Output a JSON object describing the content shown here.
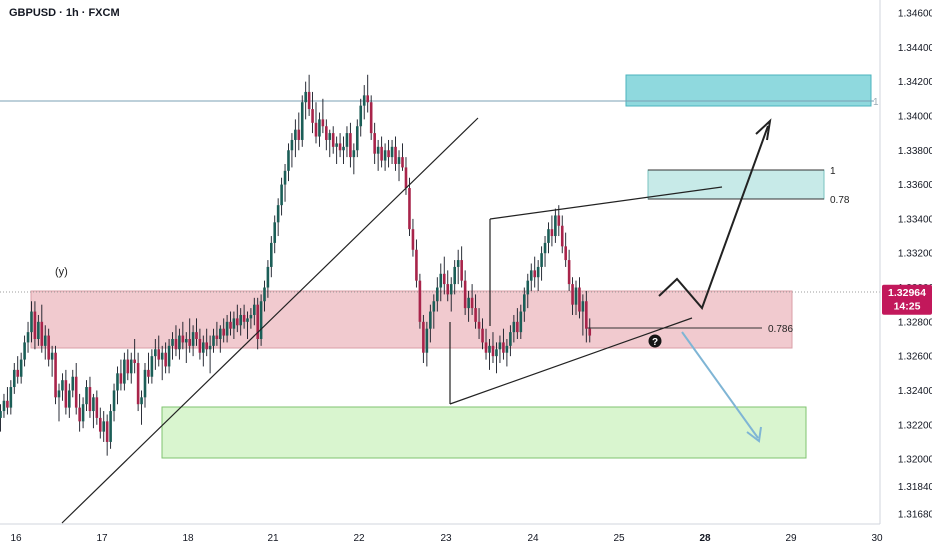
{
  "header": {
    "title": "GBPUSD · 1h · FXCM"
  },
  "chart_data": {
    "type": "candlestick",
    "symbol": "GBPUSD",
    "timeframe": "1h",
    "source": "FXCM",
    "ylim": [
      1.3158,
      1.3466
    ],
    "y_ticks": [
      "1.34600",
      "1.34400",
      "1.34200",
      "1.34000",
      "1.33800",
      "1.33600",
      "1.33400",
      "1.33200",
      "1.33000",
      "1.32800",
      "1.32600",
      "1.32400",
      "1.32200",
      "1.32000",
      "1.31840",
      "1.31680"
    ],
    "x_ticks": [
      {
        "day": 0,
        "label": "16"
      },
      {
        "day": 1,
        "label": "17"
      },
      {
        "day": 2,
        "label": "18"
      },
      {
        "day": 3,
        "label": "21"
      },
      {
        "day": 4,
        "label": "22"
      },
      {
        "day": 5,
        "label": "23"
      },
      {
        "day": 6,
        "label": "24"
      },
      {
        "day": 7,
        "label": "25"
      },
      {
        "day": 8,
        "label": "28",
        "bold": true
      },
      {
        "day": 9,
        "label": "29"
      },
      {
        "day": 10,
        "label": "30"
      }
    ],
    "x_range_days": [
      -0.18,
      10.05
    ],
    "last_price": {
      "value": 1.32964,
      "label": "1.32964",
      "countdown": "14:25"
    },
    "colors": {
      "up": "#1b5e57",
      "down": "#a8244a",
      "wick": "#131722",
      "price_label": "#c2185b"
    },
    "candles": [
      [
        -0.18,
        1.3224,
        1.3232,
        1.3216,
        1.3228
      ],
      [
        -0.14,
        1.3228,
        1.3238,
        1.3224,
        1.3234
      ],
      [
        -0.1,
        1.3234,
        1.3242,
        1.3226,
        1.323
      ],
      [
        -0.06,
        1.323,
        1.3246,
        1.3226,
        1.3242
      ],
      [
        -0.02,
        1.3242,
        1.3256,
        1.3238,
        1.3252
      ],
      [
        0.02,
        1.3252,
        1.326,
        1.3244,
        1.3248
      ],
      [
        0.06,
        1.3248,
        1.3262,
        1.3244,
        1.3258
      ],
      [
        0.1,
        1.3258,
        1.3272,
        1.3254,
        1.3268
      ],
      [
        0.14,
        1.3268,
        1.328,
        1.3262,
        1.3274
      ],
      [
        0.18,
        1.3274,
        1.3292,
        1.3268,
        1.3286
      ],
      [
        0.22,
        1.3286,
        1.3292,
        1.3264,
        1.327
      ],
      [
        0.26,
        1.327,
        1.3284,
        1.3266,
        1.328
      ],
      [
        0.3,
        1.328,
        1.329,
        1.3262,
        1.3266
      ],
      [
        0.34,
        1.3266,
        1.3278,
        1.3258,
        1.3272
      ],
      [
        0.38,
        1.3272,
        1.3276,
        1.3254,
        1.3258
      ],
      [
        0.42,
        1.3258,
        1.3266,
        1.3248,
        1.3262
      ],
      [
        0.46,
        1.3262,
        1.3266,
        1.3232,
        1.3236
      ],
      [
        0.5,
        1.3236,
        1.3244,
        1.3222,
        1.324
      ],
      [
        0.54,
        1.324,
        1.325,
        1.3234,
        1.3246
      ],
      [
        0.58,
        1.3246,
        1.3252,
        1.3226,
        1.323
      ],
      [
        0.62,
        1.323,
        1.3244,
        1.3224,
        1.324
      ],
      [
        0.66,
        1.324,
        1.3252,
        1.3236,
        1.3248
      ],
      [
        0.7,
        1.3248,
        1.3256,
        1.3226,
        1.323
      ],
      [
        0.74,
        1.323,
        1.3238,
        1.3216,
        1.3222
      ],
      [
        0.78,
        1.3222,
        1.3236,
        1.3218,
        1.3232
      ],
      [
        0.82,
        1.3232,
        1.3246,
        1.3228,
        1.3242
      ],
      [
        0.86,
        1.3242,
        1.3248,
        1.3224,
        1.3228
      ],
      [
        0.9,
        1.3228,
        1.3238,
        1.3218,
        1.3236
      ],
      [
        0.94,
        1.3236,
        1.324,
        1.322,
        1.3224
      ],
      [
        0.98,
        1.3224,
        1.323,
        1.3212,
        1.3216
      ],
      [
        1.02,
        1.3216,
        1.3228,
        1.321,
        1.3222
      ],
      [
        1.06,
        1.3222,
        1.3226,
        1.3202,
        1.321
      ],
      [
        1.1,
        1.321,
        1.3232,
        1.3206,
        1.3228
      ],
      [
        1.14,
        1.3228,
        1.3244,
        1.3222,
        1.324
      ],
      [
        1.18,
        1.324,
        1.3254,
        1.3232,
        1.325
      ],
      [
        1.22,
        1.325,
        1.3258,
        1.324,
        1.3244
      ],
      [
        1.26,
        1.3244,
        1.3262,
        1.324,
        1.3258
      ],
      [
        1.3,
        1.3258,
        1.3264,
        1.3246,
        1.325
      ],
      [
        1.34,
        1.325,
        1.3262,
        1.3244,
        1.3258
      ],
      [
        1.38,
        1.3258,
        1.327,
        1.325,
        1.3256
      ],
      [
        1.42,
        1.3256,
        1.3262,
        1.3228,
        1.3232
      ],
      [
        1.46,
        1.3232,
        1.324,
        1.322,
        1.3236
      ],
      [
        1.5,
        1.3236,
        1.3256,
        1.323,
        1.3252
      ],
      [
        1.54,
        1.3252,
        1.3262,
        1.3244,
        1.3248
      ],
      [
        1.58,
        1.3248,
        1.3264,
        1.3244,
        1.326
      ],
      [
        1.62,
        1.326,
        1.327,
        1.3252,
        1.3264
      ],
      [
        1.66,
        1.3264,
        1.3272,
        1.3254,
        1.3258
      ],
      [
        1.7,
        1.3258,
        1.3266,
        1.3246,
        1.3262
      ],
      [
        1.74,
        1.3262,
        1.3268,
        1.325,
        1.3254
      ],
      [
        1.78,
        1.3254,
        1.327,
        1.325,
        1.3266
      ],
      [
        1.82,
        1.3266,
        1.3274,
        1.3258,
        1.327
      ],
      [
        1.86,
        1.327,
        1.3278,
        1.326,
        1.3264
      ],
      [
        1.9,
        1.3264,
        1.3276,
        1.3258,
        1.3272
      ],
      [
        1.94,
        1.3272,
        1.328,
        1.3264,
        1.3268
      ],
      [
        1.98,
        1.3268,
        1.3274,
        1.3256,
        1.327
      ],
      [
        2.02,
        1.327,
        1.3282,
        1.3262,
        1.3266
      ],
      [
        2.06,
        1.3266,
        1.3278,
        1.326,
        1.3274
      ],
      [
        2.1,
        1.3274,
        1.3282,
        1.3266,
        1.327
      ],
      [
        2.14,
        1.327,
        1.3276,
        1.3258,
        1.3262
      ],
      [
        2.18,
        1.3262,
        1.3272,
        1.3254,
        1.3268
      ],
      [
        2.22,
        1.3268,
        1.3276,
        1.326,
        1.3264
      ],
      [
        2.26,
        1.3264,
        1.3272,
        1.325,
        1.3266
      ],
      [
        2.3,
        1.3266,
        1.3276,
        1.3262,
        1.3272
      ],
      [
        2.34,
        1.3272,
        1.328,
        1.3266,
        1.327
      ],
      [
        2.38,
        1.327,
        1.3278,
        1.3262,
        1.3276
      ],
      [
        2.42,
        1.3276,
        1.3282,
        1.3268,
        1.3272
      ],
      [
        2.46,
        1.3272,
        1.3284,
        1.3268,
        1.328
      ],
      [
        2.5,
        1.328,
        1.3286,
        1.3272,
        1.3276
      ],
      [
        2.54,
        1.3276,
        1.3286,
        1.327,
        1.3282
      ],
      [
        2.58,
        1.3282,
        1.329,
        1.3274,
        1.3278
      ],
      [
        2.62,
        1.3278,
        1.3288,
        1.3272,
        1.3284
      ],
      [
        2.66,
        1.3284,
        1.329,
        1.3276,
        1.328
      ],
      [
        2.7,
        1.328,
        1.3286,
        1.327,
        1.3282
      ],
      [
        2.74,
        1.3282,
        1.3288,
        1.3276,
        1.3284
      ],
      [
        2.78,
        1.3284,
        1.3294,
        1.3278,
        1.329
      ],
      [
        2.82,
        1.329,
        1.3294,
        1.3264,
        1.327
      ],
      [
        2.86,
        1.327,
        1.3296,
        1.3266,
        1.3292
      ],
      [
        2.9,
        1.3292,
        1.3304,
        1.3286,
        1.33
      ],
      [
        2.94,
        1.33,
        1.3316,
        1.3294,
        1.3312
      ],
      [
        2.98,
        1.3312,
        1.333,
        1.3306,
        1.3326
      ],
      [
        3.02,
        1.3326,
        1.3342,
        1.332,
        1.3338
      ],
      [
        3.06,
        1.3338,
        1.3352,
        1.333,
        1.3348
      ],
      [
        3.1,
        1.3348,
        1.3364,
        1.3342,
        1.336
      ],
      [
        3.14,
        1.336,
        1.3372,
        1.335,
        1.3368
      ],
      [
        3.18,
        1.3368,
        1.3384,
        1.3362,
        1.338
      ],
      [
        3.22,
        1.338,
        1.339,
        1.337,
        1.3386
      ],
      [
        3.26,
        1.3386,
        1.3398,
        1.3376,
        1.3392
      ],
      [
        3.3,
        1.3392,
        1.3402,
        1.338,
        1.3386
      ],
      [
        3.34,
        1.3386,
        1.3412,
        1.3382,
        1.3408
      ],
      [
        3.38,
        1.3408,
        1.342,
        1.3398,
        1.3414
      ],
      [
        3.42,
        1.3414,
        1.3424,
        1.34,
        1.3404
      ],
      [
        3.46,
        1.3404,
        1.3414,
        1.339,
        1.3396
      ],
      [
        3.5,
        1.3396,
        1.3408,
        1.3384,
        1.3388
      ],
      [
        3.54,
        1.3388,
        1.3402,
        1.3382,
        1.3398
      ],
      [
        3.58,
        1.3398,
        1.341,
        1.339,
        1.3394
      ],
      [
        3.62,
        1.3394,
        1.3398,
        1.338,
        1.3386
      ],
      [
        3.66,
        1.3386,
        1.3392,
        1.3376,
        1.339
      ],
      [
        3.7,
        1.339,
        1.3394,
        1.3378,
        1.3382
      ],
      [
        3.74,
        1.3382,
        1.3388,
        1.3372,
        1.3384
      ],
      [
        3.78,
        1.3384,
        1.339,
        1.3376,
        1.338
      ],
      [
        3.82,
        1.338,
        1.3388,
        1.3372,
        1.3382
      ],
      [
        3.86,
        1.3382,
        1.3394,
        1.3376,
        1.339
      ],
      [
        3.9,
        1.339,
        1.3396,
        1.337,
        1.3376
      ],
      [
        3.94,
        1.3376,
        1.3384,
        1.3366,
        1.338
      ],
      [
        3.98,
        1.338,
        1.3398,
        1.3376,
        1.3394
      ],
      [
        4.02,
        1.3394,
        1.341,
        1.3388,
        1.3406
      ],
      [
        4.06,
        1.3406,
        1.3418,
        1.3398,
        1.3412
      ],
      [
        4.1,
        1.3412,
        1.3424,
        1.3402,
        1.3408
      ],
      [
        4.14,
        1.3408,
        1.3412,
        1.3386,
        1.339
      ],
      [
        4.18,
        1.339,
        1.3396,
        1.3372,
        1.3378
      ],
      [
        4.22,
        1.3378,
        1.3386,
        1.3368,
        1.3382
      ],
      [
        4.26,
        1.3382,
        1.3388,
        1.337,
        1.3374
      ],
      [
        4.3,
        1.3374,
        1.3384,
        1.3368,
        1.338
      ],
      [
        4.34,
        1.338,
        1.3386,
        1.337,
        1.3376
      ],
      [
        4.38,
        1.3376,
        1.3386,
        1.3372,
        1.3382
      ],
      [
        4.42,
        1.3382,
        1.3388,
        1.3368,
        1.3372
      ],
      [
        4.46,
        1.3372,
        1.338,
        1.3362,
        1.3376
      ],
      [
        4.5,
        1.3376,
        1.3384,
        1.3368,
        1.337
      ],
      [
        4.54,
        1.337,
        1.3376,
        1.3354,
        1.3358
      ],
      [
        4.58,
        1.3358,
        1.3364,
        1.333,
        1.3334
      ],
      [
        4.62,
        1.3334,
        1.334,
        1.3318,
        1.3322
      ],
      [
        4.66,
        1.3322,
        1.3328,
        1.33,
        1.3304
      ],
      [
        4.7,
        1.3304,
        1.3308,
        1.3276,
        1.328
      ],
      [
        4.74,
        1.328,
        1.3284,
        1.3256,
        1.3262
      ],
      [
        4.78,
        1.3262,
        1.328,
        1.3254,
        1.3276
      ],
      [
        4.82,
        1.3276,
        1.329,
        1.3268,
        1.3286
      ],
      [
        4.86,
        1.3286,
        1.3296,
        1.3276,
        1.3292
      ],
      [
        4.9,
        1.3292,
        1.3306,
        1.3286,
        1.33
      ],
      [
        4.94,
        1.33,
        1.3314,
        1.3292,
        1.3308
      ],
      [
        4.98,
        1.3308,
        1.3318,
        1.3296,
        1.3302
      ],
      [
        5.02,
        1.3302,
        1.331,
        1.3292,
        1.3296
      ],
      [
        5.06,
        1.3296,
        1.3306,
        1.3286,
        1.3302
      ],
      [
        5.1,
        1.3302,
        1.3316,
        1.3296,
        1.3312
      ],
      [
        5.14,
        1.3312,
        1.3322,
        1.3302,
        1.3316
      ],
      [
        5.18,
        1.3316,
        1.3324,
        1.33,
        1.3304
      ],
      [
        5.22,
        1.3304,
        1.331,
        1.3284,
        1.3288
      ],
      [
        5.26,
        1.3288,
        1.3298,
        1.328,
        1.3294
      ],
      [
        5.3,
        1.3294,
        1.3302,
        1.3284,
        1.3288
      ],
      [
        5.34,
        1.3288,
        1.3296,
        1.3276,
        1.328
      ],
      [
        5.38,
        1.328,
        1.3288,
        1.327,
        1.3276
      ],
      [
        5.42,
        1.3276,
        1.3282,
        1.3264,
        1.3268
      ],
      [
        5.46,
        1.3268,
        1.3276,
        1.3258,
        1.3262
      ],
      [
        5.5,
        1.3262,
        1.327,
        1.3252,
        1.3266
      ],
      [
        5.54,
        1.3266,
        1.3274,
        1.3256,
        1.326
      ],
      [
        5.58,
        1.326,
        1.3268,
        1.325,
        1.3264
      ],
      [
        5.62,
        1.3264,
        1.3272,
        1.3256,
        1.3268
      ],
      [
        5.66,
        1.3268,
        1.3276,
        1.3258,
        1.3262
      ],
      [
        5.7,
        1.3262,
        1.327,
        1.3254,
        1.3266
      ],
      [
        5.74,
        1.3266,
        1.3278,
        1.326,
        1.3274
      ],
      [
        5.78,
        1.3274,
        1.3284,
        1.3268,
        1.328
      ],
      [
        5.82,
        1.328,
        1.3288,
        1.327,
        1.3274
      ],
      [
        5.86,
        1.3274,
        1.329,
        1.327,
        1.3286
      ],
      [
        5.9,
        1.3286,
        1.33,
        1.328,
        1.3296
      ],
      [
        5.94,
        1.3296,
        1.3308,
        1.3288,
        1.3304
      ],
      [
        5.98,
        1.3304,
        1.3314,
        1.3298,
        1.331
      ],
      [
        6.02,
        1.331,
        1.3318,
        1.33,
        1.3306
      ],
      [
        6.06,
        1.3306,
        1.3316,
        1.3298,
        1.3312
      ],
      [
        6.1,
        1.3312,
        1.3324,
        1.3304,
        1.332
      ],
      [
        6.14,
        1.332,
        1.333,
        1.3312,
        1.3326
      ],
      [
        6.18,
        1.3326,
        1.3338,
        1.332,
        1.3334
      ],
      [
        6.22,
        1.3334,
        1.3342,
        1.3324,
        1.333
      ],
      [
        6.26,
        1.333,
        1.3346,
        1.3326,
        1.3342
      ],
      [
        6.3,
        1.3342,
        1.3348,
        1.333,
        1.3336
      ],
      [
        6.34,
        1.3336,
        1.3342,
        1.332,
        1.3324
      ],
      [
        6.38,
        1.3324,
        1.3332,
        1.3312,
        1.3316
      ],
      [
        6.42,
        1.3316,
        1.3322,
        1.3298,
        1.3302
      ],
      [
        6.46,
        1.3302,
        1.3306,
        1.3284,
        1.329
      ],
      [
        6.5,
        1.329,
        1.3304,
        1.3284,
        1.33
      ],
      [
        6.54,
        1.33,
        1.3306,
        1.3282,
        1.3286
      ],
      [
        6.58,
        1.3286,
        1.3296,
        1.3272,
        1.3292
      ],
      [
        6.62,
        1.3292,
        1.3298,
        1.3268,
        1.3276
      ],
      [
        6.66,
        1.3276,
        1.3282,
        1.3268,
        1.3272
      ]
    ],
    "annotations": {
      "y_label": "(y)",
      "fib_1_label": "1",
      "fib_078_label": "0.78",
      "fib_0786_label": "0.786",
      "question_mark": "?",
      "level_marker": "1"
    }
  }
}
